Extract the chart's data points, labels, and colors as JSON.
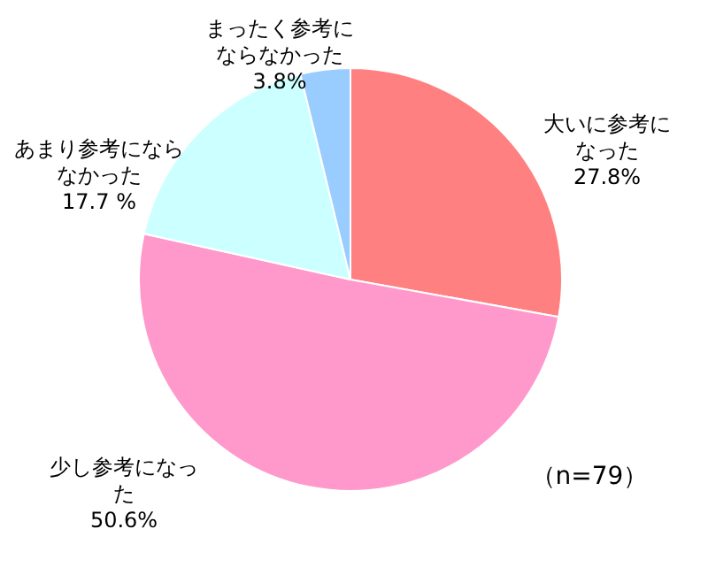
{
  "chart_data": {
    "type": "pie",
    "categories": [
      "大いに参考になった",
      "少し参考になった",
      "あまり参考にならなかった",
      "まったく参考にならなかった"
    ],
    "values": [
      27.8,
      50.6,
      17.7,
      3.8
    ],
    "value_labels": [
      "27.8%",
      "50.6%",
      "17.7 %",
      "3.8%"
    ],
    "colors": [
      "#ff8080",
      "#ff99cc",
      "#ccffff",
      "#99ccff"
    ],
    "legend": false,
    "annotations": [
      "（n=79）"
    ]
  }
}
